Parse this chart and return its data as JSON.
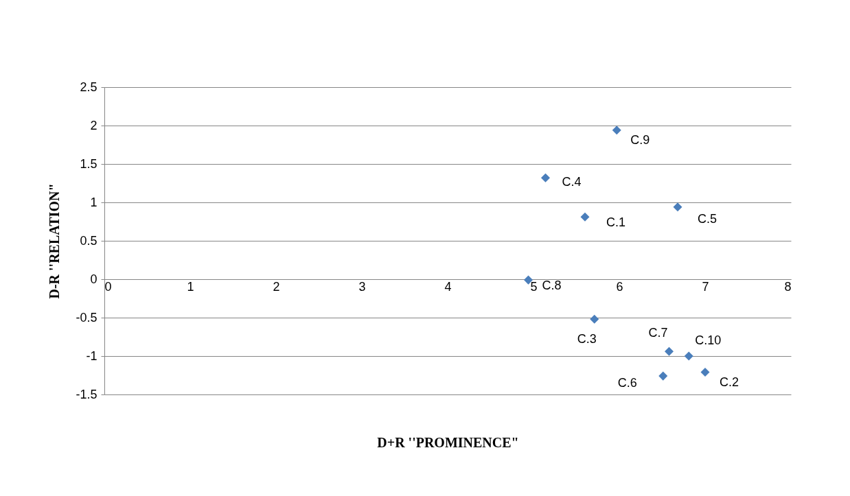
{
  "chart_data": {
    "type": "scatter",
    "xlabel": "D+R ''PROMINENCE\"",
    "ylabel": "D-R ''RELATION\"",
    "x": [
      5.97,
      5.14,
      5.6,
      6.68,
      4.94,
      5.71,
      6.58,
      6.81,
      6.51,
      7.0
    ],
    "series": [
      {
        "color": "#4a7ebb",
        "values": [
          1.94,
          1.32,
          0.81,
          0.94,
          -0.01,
          -0.52,
          -0.94,
          -1.0,
          -1.26,
          -1.21
        ]
      }
    ],
    "annotations": [
      {
        "text": "C.9",
        "x": 5.97,
        "y": 1.94
      },
      {
        "text": "C.4",
        "x": 5.14,
        "y": 1.32
      },
      {
        "text": "C.1",
        "x": 5.6,
        "y": 0.81
      },
      {
        "text": "C.5",
        "x": 6.68,
        "y": 0.94
      },
      {
        "text": "C.8",
        "x": 4.94,
        "y": -0.01
      },
      {
        "text": "C.3",
        "x": 5.71,
        "y": -0.52
      },
      {
        "text": "C.7",
        "x": 6.58,
        "y": -0.94
      },
      {
        "text": "C.10",
        "x": 6.81,
        "y": -1.0
      },
      {
        "text": "C.6",
        "x": 6.51,
        "y": -1.26
      },
      {
        "text": "C.2",
        "x": 7.0,
        "y": -1.21
      }
    ],
    "xlim": [
      0,
      8
    ],
    "xticks": [
      0,
      1,
      2,
      3,
      4,
      5,
      6,
      7,
      8
    ],
    "ylim": [
      -1.5,
      2.5
    ],
    "yticks": [
      -1.5,
      -1,
      -0.5,
      0,
      0.5,
      1,
      1.5,
      2,
      2.5
    ],
    "grid": "y",
    "marker": "diamond"
  }
}
